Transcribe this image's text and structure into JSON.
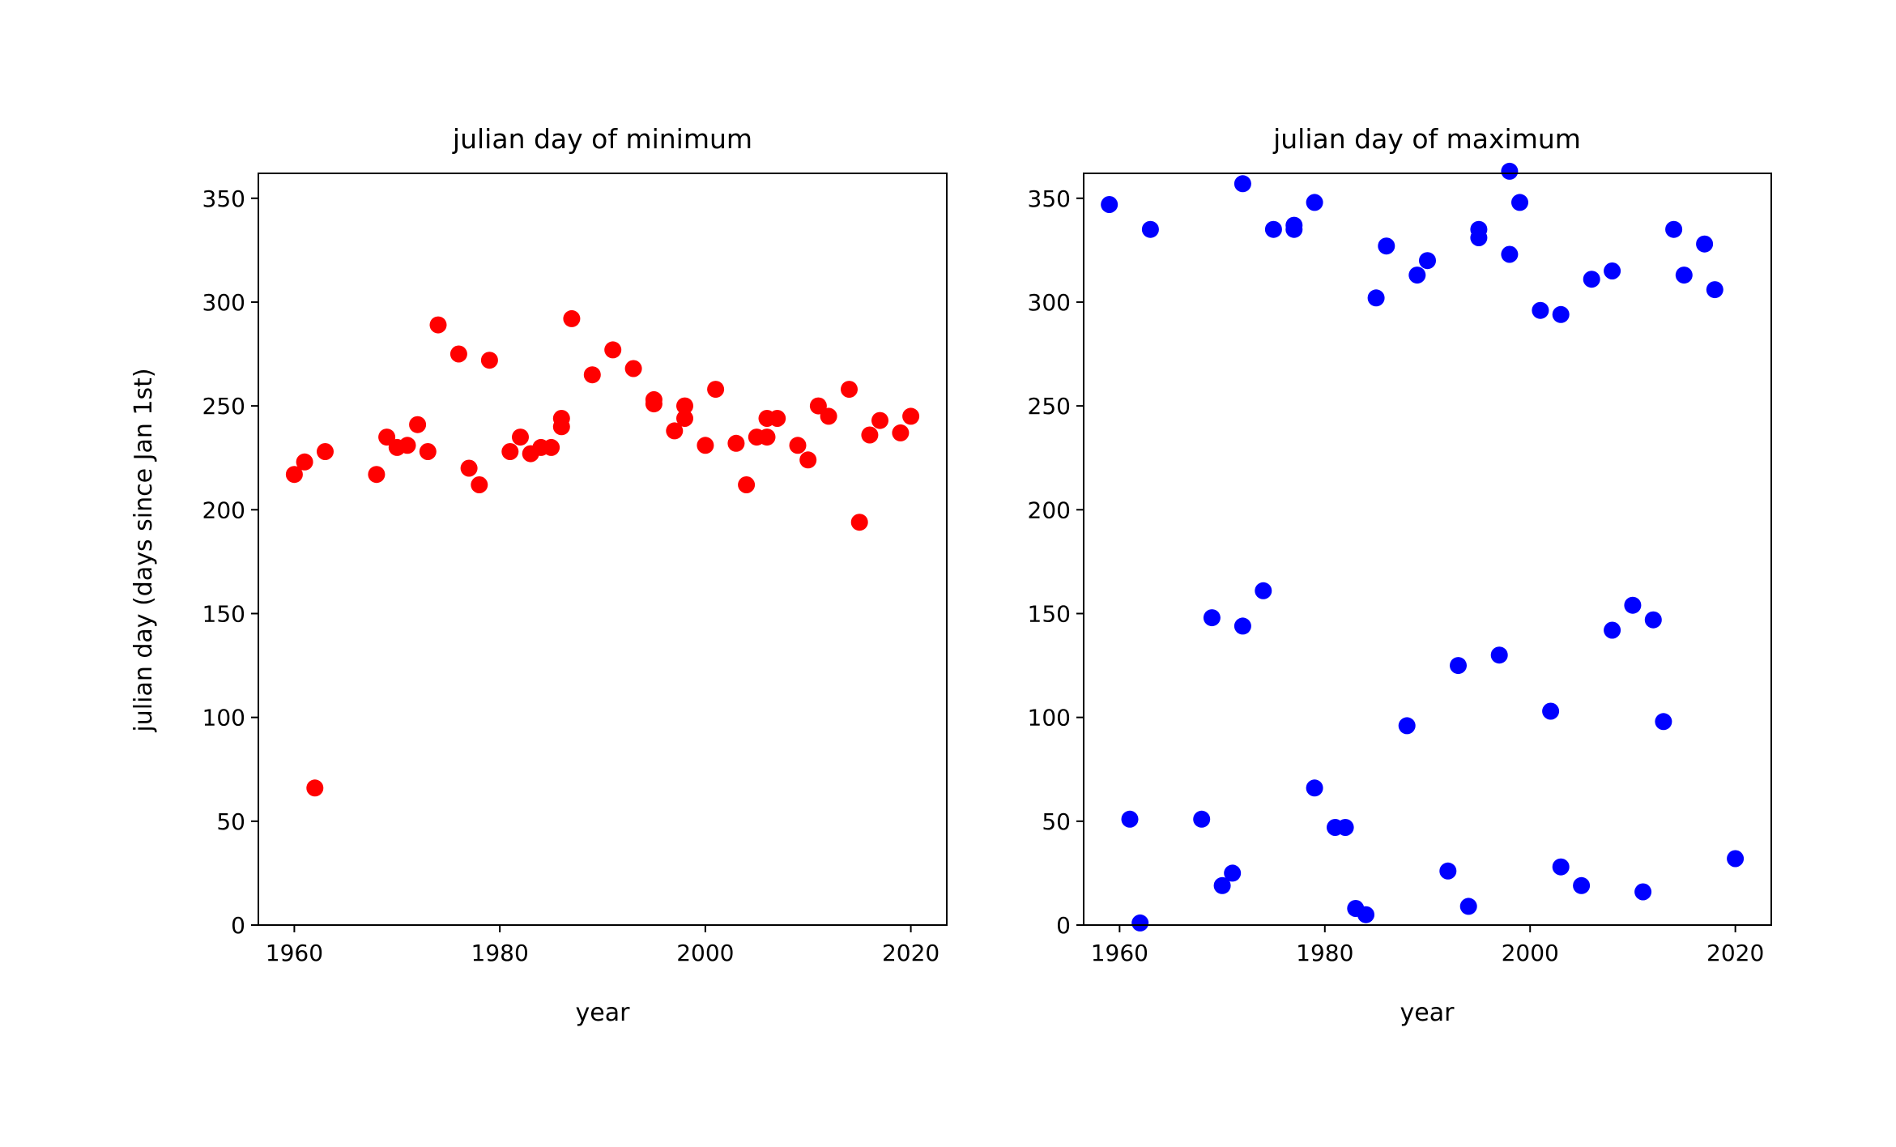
{
  "chart_data": [
    {
      "type": "scatter",
      "title": "julian day of minimum",
      "xlabel": "year",
      "ylabel": "julian day (days since Jan 1st)",
      "xlim": [
        1956.5,
        2023.5
      ],
      "ylim": [
        0,
        362
      ],
      "xticks": [
        1960,
        1980,
        2000,
        2020
      ],
      "yticks": [
        0,
        50,
        100,
        150,
        200,
        250,
        300,
        350
      ],
      "grid": false,
      "color": "#ff0000",
      "points": [
        {
          "x": 1960,
          "y": 217
        },
        {
          "x": 1961,
          "y": 223
        },
        {
          "x": 1962,
          "y": 66
        },
        {
          "x": 1963,
          "y": 228
        },
        {
          "x": 1968,
          "y": 217
        },
        {
          "x": 1969,
          "y": 235
        },
        {
          "x": 1970,
          "y": 230
        },
        {
          "x": 1971,
          "y": 231
        },
        {
          "x": 1972,
          "y": 241
        },
        {
          "x": 1973,
          "y": 228
        },
        {
          "x": 1974,
          "y": 289
        },
        {
          "x": 1976,
          "y": 275
        },
        {
          "x": 1977,
          "y": 220
        },
        {
          "x": 1978,
          "y": 212
        },
        {
          "x": 1979,
          "y": 272
        },
        {
          "x": 1981,
          "y": 228
        },
        {
          "x": 1982,
          "y": 235
        },
        {
          "x": 1983,
          "y": 227
        },
        {
          "x": 1984,
          "y": 230
        },
        {
          "x": 1985,
          "y": 230
        },
        {
          "x": 1986,
          "y": 240
        },
        {
          "x": 1986,
          "y": 244
        },
        {
          "x": 1987,
          "y": 292
        },
        {
          "x": 1989,
          "y": 265
        },
        {
          "x": 1991,
          "y": 277
        },
        {
          "x": 1993,
          "y": 268
        },
        {
          "x": 1995,
          "y": 251
        },
        {
          "x": 1995,
          "y": 253
        },
        {
          "x": 1997,
          "y": 238
        },
        {
          "x": 1998,
          "y": 244
        },
        {
          "x": 1998,
          "y": 250
        },
        {
          "x": 2000,
          "y": 231
        },
        {
          "x": 2001,
          "y": 258
        },
        {
          "x": 2003,
          "y": 232
        },
        {
          "x": 2004,
          "y": 212
        },
        {
          "x": 2005,
          "y": 235
        },
        {
          "x": 2006,
          "y": 235
        },
        {
          "x": 2006,
          "y": 244
        },
        {
          "x": 2007,
          "y": 244
        },
        {
          "x": 2009,
          "y": 231
        },
        {
          "x": 2010,
          "y": 224
        },
        {
          "x": 2011,
          "y": 250
        },
        {
          "x": 2012,
          "y": 245
        },
        {
          "x": 2014,
          "y": 258
        },
        {
          "x": 2015,
          "y": 194
        },
        {
          "x": 2016,
          "y": 236
        },
        {
          "x": 2017,
          "y": 243
        },
        {
          "x": 2019,
          "y": 237
        },
        {
          "x": 2020,
          "y": 245
        }
      ]
    },
    {
      "type": "scatter",
      "title": "julian day of maximum",
      "xlabel": "year",
      "ylabel": "",
      "xlim": [
        1956.5,
        2023.5
      ],
      "ylim": [
        0,
        362
      ],
      "xticks": [
        1960,
        1980,
        2000,
        2020
      ],
      "yticks": [
        0,
        50,
        100,
        150,
        200,
        250,
        300,
        350
      ],
      "grid": false,
      "color": "#0000ff",
      "points": [
        {
          "x": 1959,
          "y": 347
        },
        {
          "x": 1961,
          "y": 51
        },
        {
          "x": 1962,
          "y": 1
        },
        {
          "x": 1963,
          "y": 335
        },
        {
          "x": 1968,
          "y": 51
        },
        {
          "x": 1969,
          "y": 148
        },
        {
          "x": 1970,
          "y": 19
        },
        {
          "x": 1971,
          "y": 25
        },
        {
          "x": 1972,
          "y": 144
        },
        {
          "x": 1972,
          "y": 357
        },
        {
          "x": 1974,
          "y": 161
        },
        {
          "x": 1975,
          "y": 335
        },
        {
          "x": 1977,
          "y": 335
        },
        {
          "x": 1977,
          "y": 337
        },
        {
          "x": 1979,
          "y": 66
        },
        {
          "x": 1979,
          "y": 348
        },
        {
          "x": 1981,
          "y": 47
        },
        {
          "x": 1982,
          "y": 47
        },
        {
          "x": 1983,
          "y": 8
        },
        {
          "x": 1984,
          "y": 5
        },
        {
          "x": 1985,
          "y": 302
        },
        {
          "x": 1986,
          "y": 327
        },
        {
          "x": 1988,
          "y": 96
        },
        {
          "x": 1989,
          "y": 313
        },
        {
          "x": 1990,
          "y": 320
        },
        {
          "x": 1992,
          "y": 26
        },
        {
          "x": 1993,
          "y": 125
        },
        {
          "x": 1994,
          "y": 9
        },
        {
          "x": 1995,
          "y": 331
        },
        {
          "x": 1995,
          "y": 335
        },
        {
          "x": 1997,
          "y": 130
        },
        {
          "x": 1998,
          "y": 323
        },
        {
          "x": 1998,
          "y": 363
        },
        {
          "x": 1999,
          "y": 348
        },
        {
          "x": 2001,
          "y": 296
        },
        {
          "x": 2002,
          "y": 103
        },
        {
          "x": 2003,
          "y": 28
        },
        {
          "x": 2003,
          "y": 294
        },
        {
          "x": 2005,
          "y": 19
        },
        {
          "x": 2006,
          "y": 311
        },
        {
          "x": 2008,
          "y": 142
        },
        {
          "x": 2008,
          "y": 315
        },
        {
          "x": 2010,
          "y": 154
        },
        {
          "x": 2011,
          "y": 16
        },
        {
          "x": 2012,
          "y": 147
        },
        {
          "x": 2013,
          "y": 98
        },
        {
          "x": 2014,
          "y": 335
        },
        {
          "x": 2015,
          "y": 313
        },
        {
          "x": 2017,
          "y": 328
        },
        {
          "x": 2018,
          "y": 306
        },
        {
          "x": 2020,
          "y": 32
        }
      ]
    }
  ]
}
